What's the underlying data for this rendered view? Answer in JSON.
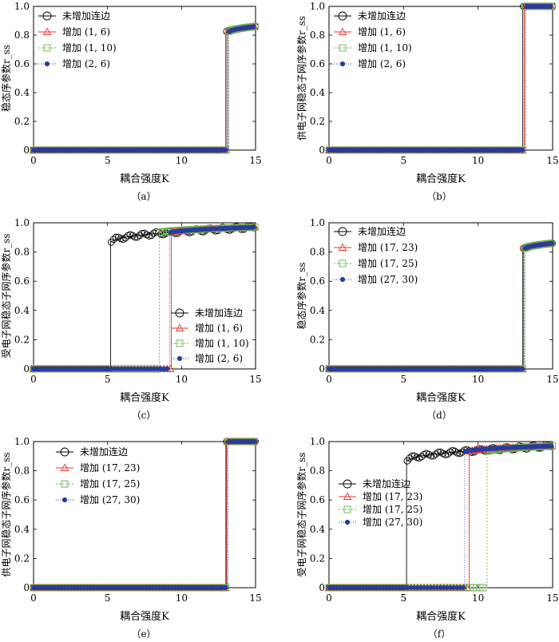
{
  "panel_labels": [
    "（a）",
    "（b）",
    "（c）",
    "（d）",
    "（e）",
    "（f）"
  ],
  "colors": {
    "black": "#000000",
    "red": "#e8342c",
    "green": "#6ab04c",
    "blue": "#2a3a9e",
    "frame": "#000000"
  },
  "chart_data": [
    {
      "type": "line",
      "panel": "(a)",
      "xlabel": "耦合强度K",
      "ylabel": "稳态序参数r_ss",
      "xlim": [
        0,
        15
      ],
      "ylim": [
        0,
        1
      ],
      "xticks": [
        "0",
        "5",
        "10",
        "15"
      ],
      "yticks": [
        "0",
        "0.2",
        "0.4",
        "0.6",
        "0.8",
        "1.0"
      ],
      "legend_position": "top-left",
      "series": [
        {
          "name": "未增加连边",
          "jump": 13.0,
          "y_start": 0.82,
          "y_end": 0.86
        },
        {
          "name": "增加 (1, 6)",
          "jump": 13.1,
          "y_start": 0.82,
          "y_end": 0.86
        },
        {
          "name": "增加 (1, 10)",
          "jump": 13.15,
          "y_start": 0.82,
          "y_end": 0.86
        },
        {
          "name": "增加 (2, 6)",
          "jump": 13.2,
          "y_start": 0.82,
          "y_end": 0.86
        }
      ]
    },
    {
      "type": "line",
      "panel": "(b)",
      "xlabel": "耦合强度K",
      "ylabel": "供电子网稳态子网序参数r_ss",
      "xlim": [
        0,
        15
      ],
      "ylim": [
        0,
        1
      ],
      "xticks": [
        "0",
        "5",
        "10",
        "15"
      ],
      "yticks": [
        "0",
        "0.2",
        "0.4",
        "0.6",
        "0.8",
        "1.0"
      ],
      "legend_position": "top-left",
      "series": [
        {
          "name": "未增加连边",
          "jump": 13.0,
          "y_start": 1.0,
          "y_end": 1.0
        },
        {
          "name": "增加 (1, 6)",
          "jump": 13.1,
          "y_start": 1.0,
          "y_end": 1.0
        },
        {
          "name": "增加 (1, 10)",
          "jump": 13.15,
          "y_start": 1.0,
          "y_end": 1.0
        },
        {
          "name": "增加 (2, 6)",
          "jump": 13.2,
          "y_start": 1.0,
          "y_end": 1.0
        }
      ]
    },
    {
      "type": "line",
      "panel": "(c)",
      "xlabel": "耦合强度K",
      "ylabel": "受电子网稳态子网序参数r_ss",
      "xlim": [
        0,
        15
      ],
      "ylim": [
        0,
        1
      ],
      "xticks": [
        "0",
        "5",
        "10",
        "15"
      ],
      "yticks": [
        "0",
        "0.2",
        "0.4",
        "0.6",
        "0.8",
        "1.0"
      ],
      "legend_position": "bottom-right",
      "series": [
        {
          "name": "未增加连边",
          "jump": 5.2,
          "y_start": 0.87,
          "y_end": 0.97
        },
        {
          "name": "增加 (1, 6)",
          "jump": 9.3,
          "y_start": 0.93,
          "y_end": 0.97
        },
        {
          "name": "增加 (1, 10)",
          "jump": 8.5,
          "y_start": 0.93,
          "y_end": 0.97
        },
        {
          "name": "增加 (2, 6)",
          "jump": 9.2,
          "y_start": 0.93,
          "y_end": 0.97
        }
      ]
    },
    {
      "type": "line",
      "panel": "(d)",
      "xlabel": "耦合强度K",
      "ylabel": "稳态序参数r_ss",
      "xlim": [
        0,
        15
      ],
      "ylim": [
        0,
        1
      ],
      "xticks": [
        "0",
        "5",
        "10",
        "15"
      ],
      "yticks": [
        "0",
        "0.2",
        "0.4",
        "0.6",
        "0.8",
        "1.0"
      ],
      "legend_position": "top-left",
      "series": [
        {
          "name": "未增加连边",
          "jump": 13.0,
          "y_start": 0.82,
          "y_end": 0.86
        },
        {
          "name": "增加 (17, 23)",
          "jump": 13.05,
          "y_start": 0.82,
          "y_end": 0.86
        },
        {
          "name": "增加 (17, 25)",
          "jump": 13.1,
          "y_start": 0.82,
          "y_end": 0.86
        },
        {
          "name": "增加 (27, 30)",
          "jump": 13.15,
          "y_start": 0.82,
          "y_end": 0.86
        }
      ]
    },
    {
      "type": "line",
      "panel": "(e)",
      "xlabel": "耦合强度K",
      "ylabel": "供电子网稳态子网序参数r_ss",
      "xlim": [
        0,
        15
      ],
      "ylim": [
        0,
        1
      ],
      "xticks": [
        "0",
        "5",
        "10",
        "15"
      ],
      "yticks": [
        "0",
        "0.2",
        "0.4",
        "0.6",
        "0.8",
        "1.0"
      ],
      "legend_position": "top-left",
      "series": [
        {
          "name": "未增加连边",
          "jump": 13.0,
          "y_start": 1.0,
          "y_end": 1.0
        },
        {
          "name": "增加 (17, 23)",
          "jump": 13.05,
          "y_start": 1.0,
          "y_end": 1.0
        },
        {
          "name": "增加 (17, 25)",
          "jump": 13.1,
          "y_start": 1.0,
          "y_end": 1.0
        },
        {
          "name": "增加 (27, 30)",
          "jump": 13.15,
          "y_start": 1.0,
          "y_end": 1.0
        }
      ]
    },
    {
      "type": "line",
      "panel": "(f)",
      "xlabel": "耦合强度K",
      "ylabel": "受电子网稳态子网序参数r_ss",
      "xlim": [
        0,
        15
      ],
      "ylim": [
        0,
        1
      ],
      "xticks": [
        "0",
        "5",
        "10",
        "15"
      ],
      "yticks": [
        "0",
        "0.2",
        "0.4",
        "0.6",
        "0.8",
        "1.0"
      ],
      "legend_position": "middle-left",
      "series": [
        {
          "name": "未增加连边",
          "jump": 5.2,
          "y_start": 0.87,
          "y_end": 0.97
        },
        {
          "name": "增加 (17, 23)",
          "jump": 9.4,
          "y_start": 0.93,
          "y_end": 0.97
        },
        {
          "name": "增加 (17, 25)",
          "jump": 10.6,
          "y_start": 0.93,
          "y_end": 0.97
        },
        {
          "name": "增加 (27, 30)",
          "jump": 9.1,
          "y_start": 0.93,
          "y_end": 0.97
        }
      ]
    }
  ]
}
